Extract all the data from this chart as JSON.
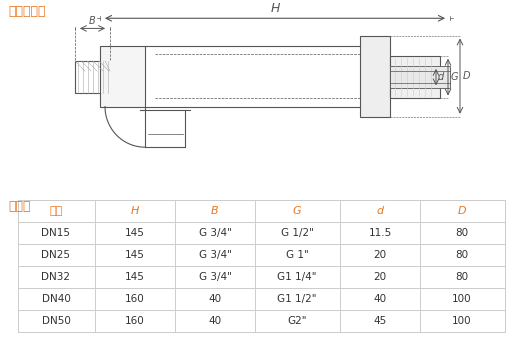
{
  "title_top": "外型尺寸圖",
  "title_bottom": "尺寸表",
  "title_color": "#E87722",
  "background_color": "#ffffff",
  "table_header": [
    "規格",
    "H",
    "B",
    "G",
    "d",
    "D"
  ],
  "table_header_color": "#E87722",
  "table_rows": [
    [
      "DN15",
      "145",
      "G 3/4\"",
      "G 1/2\"",
      "11.5",
      "80"
    ],
    [
      "DN25",
      "145",
      "G 3/4\"",
      "G 1\"",
      "20",
      "80"
    ],
    [
      "DN32",
      "145",
      "G 3/4\"",
      "G1 1/4\"",
      "20",
      "80"
    ],
    [
      "DN40",
      "160",
      "40",
      "G1 1/2\"",
      "40",
      "100"
    ],
    [
      "DN50",
      "160",
      "40",
      "G2\"",
      "45",
      "100"
    ]
  ],
  "table_line_color": "#cccccc",
  "text_color": "#333333",
  "dim_labels": [
    "H",
    "B",
    "d",
    "G",
    "D"
  ],
  "orange": "#E87722"
}
